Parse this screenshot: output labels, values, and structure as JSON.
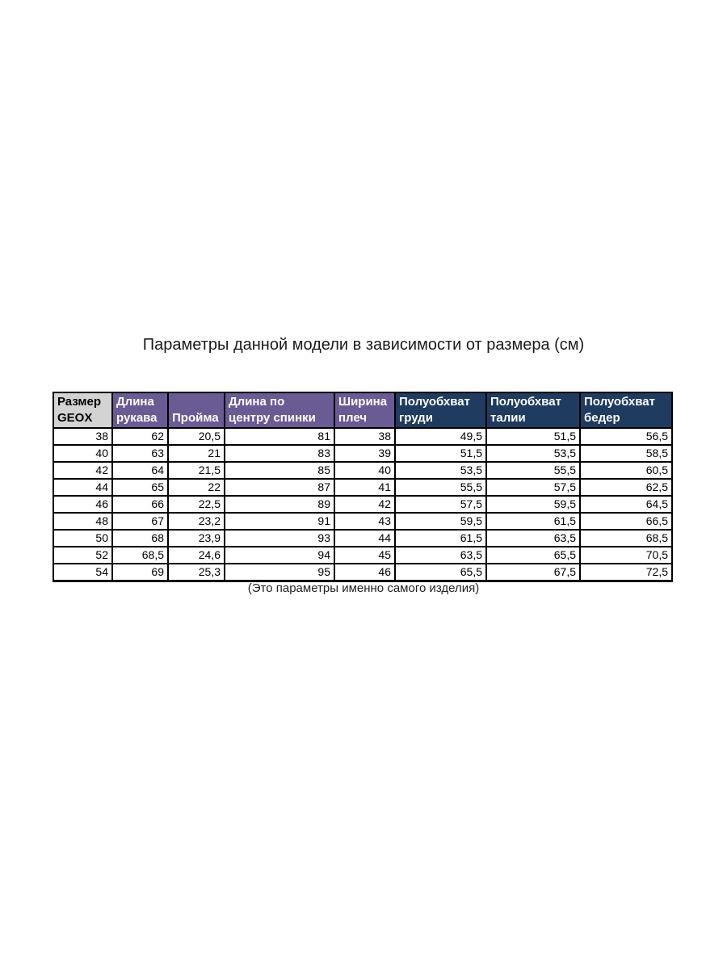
{
  "title": "Параметры данной модели в зависимости от размера (см)",
  "footnote": "(Это параметры именно самого изделия)",
  "colors": {
    "size_header_bg": "#d3d3d3",
    "size_header_text": "#000000",
    "measure_header_bg": "#6a5b95",
    "girth_header_bg": "#1f3b60",
    "header_text": "#ffffff",
    "cell_bg": "#ffffff",
    "border": "#000000"
  },
  "table": {
    "columns": [
      {
        "id": "size_geox",
        "label_lines": [
          "Размер",
          "GEOX"
        ],
        "bg": "#d3d3d3",
        "text_color": "#000000"
      },
      {
        "id": "sleeve_length",
        "label_lines": [
          "Длина",
          "рукава"
        ],
        "bg": "#6a5b95",
        "text_color": "#ffffff"
      },
      {
        "id": "armhole",
        "label_lines": [
          "Пройма"
        ],
        "bg": "#6a5b95",
        "text_color": "#ffffff"
      },
      {
        "id": "back_center_length",
        "label_lines": [
          "Длина по",
          "центру спинки"
        ],
        "bg": "#6a5b95",
        "text_color": "#ffffff"
      },
      {
        "id": "shoulder_width",
        "label_lines": [
          "Ширина",
          "плеч"
        ],
        "bg": "#6a5b95",
        "text_color": "#ffffff"
      },
      {
        "id": "half_chest",
        "label_lines": [
          "Полуобхват",
          "груди"
        ],
        "bg": "#1f3b60",
        "text_color": "#ffffff"
      },
      {
        "id": "half_waist",
        "label_lines": [
          "Полуобхват",
          "талии"
        ],
        "bg": "#1f3b60",
        "text_color": "#ffffff"
      },
      {
        "id": "half_hip",
        "label_lines": [
          "Полуобхват",
          "бедер"
        ],
        "bg": "#1f3b60",
        "text_color": "#ffffff"
      }
    ],
    "rows": [
      [
        "38",
        "62",
        "20,5",
        "81",
        "38",
        "49,5",
        "51,5",
        "56,5"
      ],
      [
        "40",
        "63",
        "21",
        "83",
        "39",
        "51,5",
        "53,5",
        "58,5"
      ],
      [
        "42",
        "64",
        "21,5",
        "85",
        "40",
        "53,5",
        "55,5",
        "60,5"
      ],
      [
        "44",
        "65",
        "22",
        "87",
        "41",
        "55,5",
        "57,5",
        "62,5"
      ],
      [
        "46",
        "66",
        "22,5",
        "89",
        "42",
        "57,5",
        "59,5",
        "64,5"
      ],
      [
        "48",
        "67",
        "23,2",
        "91",
        "43",
        "59,5",
        "61,5",
        "66,5"
      ],
      [
        "50",
        "68",
        "23,9",
        "93",
        "44",
        "61,5",
        "63,5",
        "68,5"
      ],
      [
        "52",
        "68,5",
        "24,6",
        "94",
        "45",
        "63,5",
        "65,5",
        "70,5"
      ],
      [
        "54",
        "69",
        "25,3",
        "95",
        "46",
        "65,5",
        "67,5",
        "72,5"
      ]
    ]
  }
}
